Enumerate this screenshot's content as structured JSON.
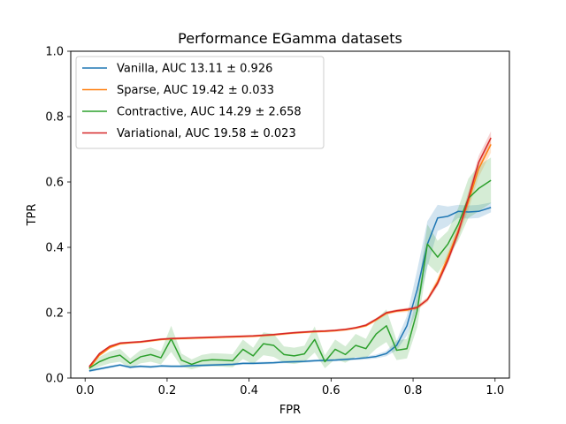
{
  "chart_data": {
    "type": "line",
    "title": "Performance EGamma datasets",
    "xlabel": "FPR",
    "ylabel": "TPR",
    "xlim": [
      -0.035,
      1.035
    ],
    "ylim": [
      0.0,
      1.0
    ],
    "xticks": [
      0.0,
      0.2,
      0.4,
      0.6,
      0.8,
      1.0
    ],
    "xtick_labels": [
      "0.0",
      "0.2",
      "0.4",
      "0.6",
      "0.8",
      "1.0"
    ],
    "yticks": [
      0.0,
      0.2,
      0.4,
      0.6,
      0.8,
      1.0
    ],
    "ytick_labels": [
      "0.0",
      "0.2",
      "0.4",
      "0.6",
      "0.8",
      "1.0"
    ],
    "grid": false,
    "legend_position": "upper-left",
    "x": [
      0.01,
      0.035,
      0.06,
      0.085,
      0.11,
      0.135,
      0.16,
      0.185,
      0.21,
      0.235,
      0.26,
      0.285,
      0.31,
      0.335,
      0.36,
      0.385,
      0.41,
      0.435,
      0.46,
      0.485,
      0.51,
      0.535,
      0.56,
      0.585,
      0.61,
      0.635,
      0.66,
      0.685,
      0.71,
      0.735,
      0.76,
      0.785,
      0.81,
      0.835,
      0.86,
      0.885,
      0.91,
      0.935,
      0.96,
      0.99
    ],
    "series": [
      {
        "name": "Vanilla, AUC 13.11 ± 0.926",
        "color": "#1f77b4",
        "band_opacity": 0.2,
        "values": [
          0.022,
          0.028,
          0.034,
          0.04,
          0.033,
          0.036,
          0.034,
          0.037,
          0.036,
          0.036,
          0.038,
          0.039,
          0.04,
          0.041,
          0.042,
          0.045,
          0.045,
          0.046,
          0.047,
          0.049,
          0.05,
          0.051,
          0.053,
          0.054,
          0.055,
          0.057,
          0.059,
          0.062,
          0.066,
          0.075,
          0.1,
          0.16,
          0.27,
          0.41,
          0.49,
          0.495,
          0.51,
          0.508,
          0.51,
          0.522
        ],
        "spread": [
          0.004,
          0.004,
          0.004,
          0.004,
          0.004,
          0.004,
          0.004,
          0.004,
          0.004,
          0.004,
          0.004,
          0.004,
          0.004,
          0.004,
          0.004,
          0.004,
          0.004,
          0.004,
          0.004,
          0.004,
          0.004,
          0.004,
          0.004,
          0.004,
          0.004,
          0.004,
          0.004,
          0.005,
          0.006,
          0.008,
          0.015,
          0.03,
          0.06,
          0.07,
          0.04,
          0.03,
          0.02,
          0.02,
          0.02,
          0.015
        ]
      },
      {
        "name": "Sparse, AUC 19.42 ± 0.033",
        "color": "#ff7f0e",
        "band_opacity": 0.2,
        "values": [
          0.03,
          0.07,
          0.093,
          0.105,
          0.108,
          0.11,
          0.114,
          0.118,
          0.12,
          0.121,
          0.122,
          0.123,
          0.124,
          0.125,
          0.126,
          0.127,
          0.128,
          0.13,
          0.132,
          0.135,
          0.138,
          0.14,
          0.142,
          0.143,
          0.145,
          0.148,
          0.153,
          0.16,
          0.178,
          0.198,
          0.205,
          0.208,
          0.215,
          0.24,
          0.295,
          0.37,
          0.45,
          0.54,
          0.64,
          0.715
        ],
        "spread": [
          0.004,
          0.004,
          0.004,
          0.004,
          0.004,
          0.004,
          0.004,
          0.004,
          0.004,
          0.004,
          0.004,
          0.004,
          0.004,
          0.004,
          0.004,
          0.004,
          0.004,
          0.004,
          0.004,
          0.004,
          0.004,
          0.004,
          0.004,
          0.004,
          0.004,
          0.004,
          0.004,
          0.004,
          0.005,
          0.005,
          0.005,
          0.006,
          0.006,
          0.008,
          0.012,
          0.015,
          0.02,
          0.025,
          0.025,
          0.025
        ]
      },
      {
        "name": "Contractive, AUC 14.29 ± 2.658",
        "color": "#2ca02c",
        "band_opacity": 0.2,
        "values": [
          0.03,
          0.05,
          0.063,
          0.07,
          0.045,
          0.065,
          0.072,
          0.062,
          0.12,
          0.055,
          0.042,
          0.053,
          0.056,
          0.055,
          0.053,
          0.088,
          0.068,
          0.105,
          0.1,
          0.072,
          0.068,
          0.074,
          0.118,
          0.05,
          0.088,
          0.072,
          0.1,
          0.09,
          0.135,
          0.16,
          0.085,
          0.09,
          0.205,
          0.41,
          0.37,
          0.41,
          0.47,
          0.55,
          0.58,
          0.605
        ],
        "spread": [
          0.008,
          0.015,
          0.018,
          0.02,
          0.015,
          0.02,
          0.022,
          0.02,
          0.04,
          0.02,
          0.015,
          0.018,
          0.02,
          0.02,
          0.02,
          0.03,
          0.025,
          0.035,
          0.035,
          0.025,
          0.025,
          0.025,
          0.04,
          0.02,
          0.03,
          0.025,
          0.035,
          0.03,
          0.045,
          0.05,
          0.03,
          0.03,
          0.05,
          0.06,
          0.05,
          0.04,
          0.05,
          0.06,
          0.07,
          0.07
        ]
      },
      {
        "name": "Variational, AUC 19.58 ± 0.023",
        "color": "#d62728",
        "band_opacity": 0.2,
        "values": [
          0.035,
          0.075,
          0.097,
          0.107,
          0.109,
          0.111,
          0.115,
          0.119,
          0.121,
          0.122,
          0.123,
          0.124,
          0.125,
          0.126,
          0.127,
          0.128,
          0.129,
          0.131,
          0.133,
          0.136,
          0.139,
          0.141,
          0.143,
          0.144,
          0.146,
          0.149,
          0.154,
          0.162,
          0.18,
          0.2,
          0.206,
          0.21,
          0.216,
          0.24,
          0.29,
          0.36,
          0.445,
          0.55,
          0.66,
          0.735
        ],
        "spread": [
          0.003,
          0.003,
          0.003,
          0.003,
          0.003,
          0.003,
          0.003,
          0.003,
          0.003,
          0.003,
          0.003,
          0.003,
          0.003,
          0.003,
          0.003,
          0.003,
          0.003,
          0.003,
          0.003,
          0.003,
          0.003,
          0.003,
          0.003,
          0.003,
          0.003,
          0.003,
          0.003,
          0.004,
          0.004,
          0.004,
          0.004,
          0.005,
          0.005,
          0.006,
          0.01,
          0.012,
          0.015,
          0.02,
          0.02,
          0.02
        ]
      }
    ]
  }
}
